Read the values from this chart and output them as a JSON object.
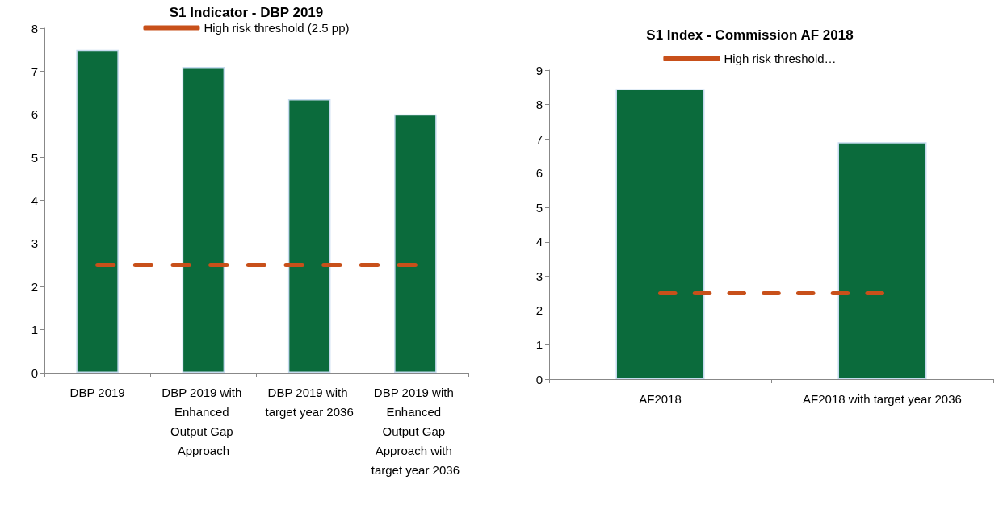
{
  "chart_data": [
    {
      "type": "bar",
      "title": "S1 Indicator - DBP 2019",
      "categories": [
        "DBP 2019",
        "DBP 2019 with Enhanced Output Gap Approach",
        "DBP 2019 with target year 2036",
        "DBP 2019 with Enhanced Output Gap Approach with target year 2036"
      ],
      "series": [
        {
          "color": "#0b6b3c",
          "values": [
            7.5,
            7.1,
            6.35,
            6.0
          ]
        },
        {
          "type": "line",
          "name": "High risk threshold (2.5 pp)",
          "color": "#c8501a",
          "line_style": "dashed",
          "values": [
            2.5,
            2.5,
            2.5,
            2.5
          ]
        }
      ],
      "ylim": [
        0,
        8
      ],
      "yticks": [
        0,
        1,
        2,
        3,
        4,
        5,
        6,
        7,
        8
      ],
      "grid": false,
      "legend": "top",
      "marker": "none"
    },
    {
      "type": "bar",
      "title": "S1 Index - Commission AF 2018",
      "categories": [
        "AF2018",
        "AF2018 with target year 2036"
      ],
      "series": [
        {
          "color": "#0b6b3c",
          "values": [
            8.45,
            6.9
          ]
        },
        {
          "type": "line",
          "name": "High risk threshold…",
          "color": "#c8501a",
          "line_style": "dashed",
          "values": [
            2.5,
            2.5
          ]
        }
      ],
      "ylim": [
        0,
        9
      ],
      "yticks": [
        0,
        1,
        2,
        3,
        4,
        5,
        6,
        7,
        8,
        9
      ],
      "grid": false,
      "legend": "top",
      "marker": "none"
    }
  ]
}
